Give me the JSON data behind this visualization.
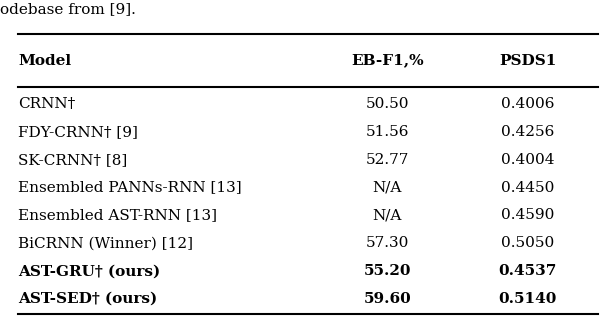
{
  "caption": "odebase from [9].",
  "header": [
    "Model",
    "EB-F1,%",
    "PSDS1"
  ],
  "rows": [
    [
      "CRNN†",
      "50.50",
      "0.4006",
      false
    ],
    [
      "FDY-CRNN† [9]",
      "51.56",
      "0.4256",
      false
    ],
    [
      "SK-CRNN† [8]",
      "52.77",
      "0.4004",
      false
    ],
    [
      "Ensembled PANNs-RNN [13]",
      "N/A",
      "0.4450",
      false
    ],
    [
      "Ensembled AST-RNN [13]",
      "N/A",
      "0.4590",
      false
    ],
    [
      "BiCRNN (Winner) [12]",
      "57.30",
      "0.5050",
      false
    ],
    [
      "AST-GRU† (ours)",
      "55.20",
      "0.4537",
      true
    ],
    [
      "AST-SED† (ours)",
      "59.60",
      "0.5140",
      true
    ]
  ],
  "figsize": [
    6.1,
    3.28
  ],
  "dpi": 100,
  "font_size": 11,
  "header_font_size": 11,
  "caption_font_size": 11,
  "background": "#ffffff",
  "text_color": "#000000",
  "line_color": "#000000"
}
